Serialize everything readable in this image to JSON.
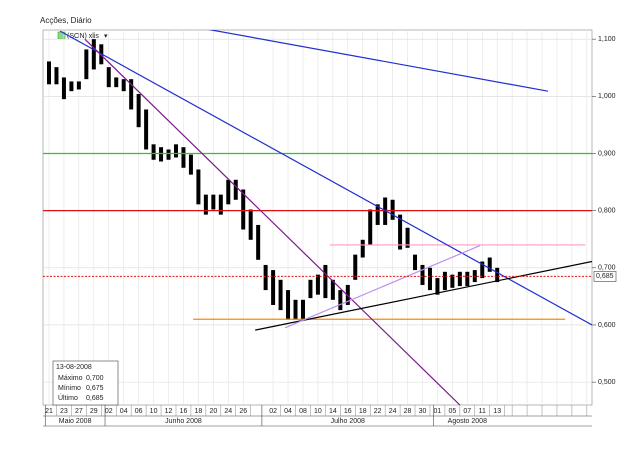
{
  "header": {
    "title": "Acções, Diário",
    "symbol": "(SON) xlis"
  },
  "chart_data": {
    "type": "bar-range",
    "ylim": [
      0.46,
      1.116
    ],
    "yticks": [
      {
        "value": 0.5,
        "label": "0,500"
      },
      {
        "value": 0.6,
        "label": "0,600"
      },
      {
        "value": 0.7,
        "label": "0,700"
      },
      {
        "value": 0.8,
        "label": "0,800"
      },
      {
        "value": 0.9,
        "label": "0,900"
      },
      {
        "value": 1.0,
        "label": "1,000"
      },
      {
        "value": 1.1,
        "label": "1,100"
      }
    ],
    "grid": true,
    "color": "#000000",
    "months": [
      {
        "name": "Maio 2008",
        "days": [
          "21",
          null,
          "23",
          null,
          "27",
          null,
          "29",
          null
        ],
        "high": [
          1.061,
          1.051,
          1.033,
          1.026,
          1.026,
          1.082,
          1.1,
          1.091
        ],
        "low": [
          1.021,
          1.021,
          0.995,
          1.009,
          1.012,
          1.03,
          1.047,
          1.056
        ]
      },
      {
        "name": "Junho 2008",
        "days": [
          "02",
          null,
          "04",
          null,
          "06",
          null,
          "10",
          null,
          "12",
          null,
          "16",
          null,
          "18",
          null,
          "20",
          null,
          "24",
          null,
          "26",
          null,
          null
        ],
        "high": [
          1.051,
          1.033,
          1.03,
          1.03,
          1.004,
          0.977,
          0.916,
          0.911,
          0.907,
          0.916,
          0.911,
          0.898,
          0.872,
          0.828,
          0.828,
          0.828,
          0.854,
          0.854,
          0.837,
          0.802,
          0.775
        ],
        "low": [
          1.016,
          1.016,
          1.009,
          0.977,
          0.946,
          0.907,
          0.889,
          0.886,
          0.889,
          0.893,
          0.875,
          0.863,
          0.811,
          0.793,
          0.802,
          0.793,
          0.811,
          0.819,
          0.767,
          0.749,
          0.714
        ]
      },
      {
        "name": "Julho 2008",
        "days": [
          null,
          "02",
          null,
          "04",
          null,
          "08",
          null,
          "10",
          null,
          "14",
          null,
          "16",
          null,
          "18",
          null,
          "22",
          null,
          "24",
          null,
          "28",
          null,
          "30",
          null
        ],
        "high": [
          0.705,
          0.696,
          0.679,
          0.661,
          0.644,
          0.644,
          0.679,
          0.688,
          0.705,
          0.679,
          0.661,
          0.67,
          0.723,
          0.749,
          0.802,
          0.811,
          0.823,
          0.819,
          0.793,
          0.77,
          0.723,
          0.705,
          0.7
        ],
        "low": [
          0.661,
          0.635,
          0.626,
          0.609,
          0.609,
          0.609,
          0.647,
          0.653,
          0.647,
          0.644,
          0.626,
          0.635,
          0.679,
          0.718,
          0.74,
          0.775,
          0.775,
          0.784,
          0.732,
          0.735,
          0.696,
          0.67,
          0.661
        ]
      },
      {
        "name": "Agosto 2008",
        "days": [
          "01",
          null,
          "05",
          null,
          "07",
          null,
          "11",
          null,
          "13"
        ],
        "high": [
          0.682,
          0.693,
          0.688,
          0.693,
          0.693,
          0.696,
          0.711,
          0.718,
          0.7
        ],
        "low": [
          0.653,
          0.661,
          0.665,
          0.668,
          0.668,
          0.675,
          0.682,
          0.693,
          0.675
        ]
      }
    ],
    "hlines": [
      {
        "value": 0.9,
        "color": "#22cc22"
      },
      {
        "value": 0.8,
        "color": "#dd1111"
      },
      {
        "value": 0.61,
        "color": "#ff8800",
        "from": 19.3,
        "to": 69.1
      },
      {
        "value": 0.74,
        "color": "#ff99cc",
        "from": 37.6,
        "to": 71.8
      }
    ],
    "trendlines": [
      {
        "color": "#1f2fd0",
        "from": [
          20.9,
          1.118
        ],
        "to": [
          66.8,
          1.009
        ]
      },
      {
        "color": "#1f2fd0",
        "from": [
          1.5,
          1.114
        ],
        "to": [
          72.7,
          0.6
        ]
      },
      {
        "color": "#7a1a8a",
        "from": [
          4.8,
          1.1
        ],
        "to": [
          55.0,
          0.46
        ]
      },
      {
        "color": "#000000",
        "from": [
          27.6,
          0.591
        ],
        "to": [
          72.7,
          0.711
        ]
      },
      {
        "color": "#c090f0",
        "from": [
          31.6,
          0.595
        ],
        "to": [
          57.7,
          0.739
        ]
      }
    ],
    "last": {
      "value": 0.685,
      "label": "0,685",
      "color": "#dd1111"
    }
  },
  "info": {
    "date": "13-08-2008",
    "rows": [
      [
        "Máximo",
        "0,700"
      ],
      [
        "Mínimo",
        "0,675"
      ],
      [
        "Último",
        "0,685"
      ]
    ]
  }
}
